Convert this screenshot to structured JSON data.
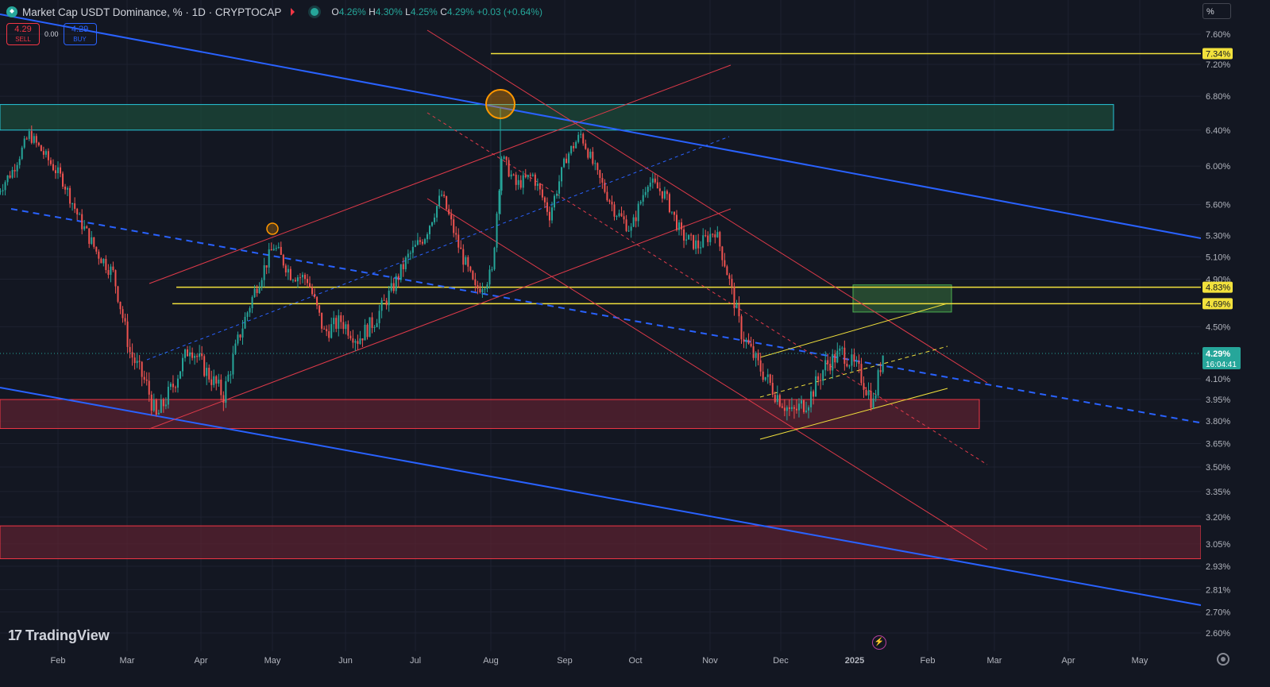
{
  "header": {
    "title": "Market Cap USDT Dominance, % · 1D · CRYPTOCAP",
    "open_label": "O",
    "open": "4.26%",
    "high_label": "H",
    "high": "4.30%",
    "low_label": "L",
    "low": "4.25%",
    "close_label": "C",
    "close": "4.29%",
    "change": "+0.03 (+0.64%)"
  },
  "trade": {
    "sell_price": "4.29",
    "sell_label": "SELL",
    "spread": "0.00",
    "buy_price": "4.29",
    "buy_label": "BUY"
  },
  "scale_mode": "%",
  "branding": {
    "name": "TradingView"
  },
  "colors": {
    "background": "#131722",
    "up": "#26a69a",
    "down": "#ef5350",
    "trendline_blue": "#2962ff",
    "trendline_red": "#e03a4a",
    "level_yellow": "#f2e13c",
    "zone_green": "#1c4a3a",
    "zone_red": "#5a2230"
  },
  "chart_data": {
    "type": "candlestick",
    "title": "Market Cap USDT Dominance, % · 1D · CRYPTOCAP",
    "x_ticks": [
      "Feb",
      "Mar",
      "Apr",
      "May",
      "Jun",
      "Jul",
      "Aug",
      "Sep",
      "Oct",
      "Nov",
      "Dec",
      "2025",
      "Feb",
      "Mar",
      "Apr",
      "May"
    ],
    "y_ticks": [
      "7.60%",
      "7.20%",
      "6.80%",
      "6.40%",
      "6.00%",
      "5.60%",
      "5.30%",
      "5.10%",
      "4.90%",
      "4.50%",
      "4.10%",
      "3.95%",
      "3.80%",
      "3.65%",
      "3.50%",
      "3.35%",
      "3.20%",
      "3.05%",
      "2.93%",
      "2.81%",
      "2.70%",
      "2.60%"
    ],
    "y_scale": "log",
    "last_price": "4.29%",
    "countdown": "16:04:41",
    "price_labels": [
      "7.34%",
      "4.83%",
      "4.69%"
    ],
    "close_path": [
      [
        "2024-01-06",
        5.7
      ],
      [
        "2024-01-13",
        5.95
      ],
      [
        "2024-01-20",
        6.35
      ],
      [
        "2024-01-27",
        6.1
      ],
      [
        "2024-02-03",
        5.85
      ],
      [
        "2024-02-10",
        5.45
      ],
      [
        "2024-02-17",
        5.15
      ],
      [
        "2024-02-24",
        4.95
      ],
      [
        "2024-03-02",
        4.3
      ],
      [
        "2024-03-09",
        4.05
      ],
      [
        "2024-03-13",
        3.82
      ],
      [
        "2024-03-20",
        4.05
      ],
      [
        "2024-03-27",
        4.35
      ],
      [
        "2024-04-03",
        4.15
      ],
      [
        "2024-04-10",
        3.98
      ],
      [
        "2024-04-17",
        4.45
      ],
      [
        "2024-04-24",
        4.85
      ],
      [
        "2024-05-01",
        5.2
      ],
      [
        "2024-05-08",
        4.95
      ],
      [
        "2024-05-15",
        4.9
      ],
      [
        "2024-05-22",
        4.45
      ],
      [
        "2024-05-29",
        4.55
      ],
      [
        "2024-06-05",
        4.4
      ],
      [
        "2024-06-12",
        4.55
      ],
      [
        "2024-06-19",
        4.8
      ],
      [
        "2024-06-26",
        5.1
      ],
      [
        "2024-07-03",
        5.3
      ],
      [
        "2024-07-10",
        5.7
      ],
      [
        "2024-07-17",
        5.2
      ],
      [
        "2024-07-24",
        4.8
      ],
      [
        "2024-07-31",
        4.95
      ],
      [
        "2024-08-04",
        6.1
      ],
      [
        "2024-08-10",
        5.8
      ],
      [
        "2024-08-17",
        5.9
      ],
      [
        "2024-08-24",
        5.5
      ],
      [
        "2024-08-31",
        6.1
      ],
      [
        "2024-09-06",
        6.35
      ],
      [
        "2024-09-13",
        5.9
      ],
      [
        "2024-09-20",
        5.55
      ],
      [
        "2024-09-27",
        5.35
      ],
      [
        "2024-10-04",
        5.85
      ],
      [
        "2024-10-11",
        5.7
      ],
      [
        "2024-10-18",
        5.3
      ],
      [
        "2024-10-25",
        5.2
      ],
      [
        "2024-11-01",
        5.35
      ],
      [
        "2024-11-05",
        5.05
      ],
      [
        "2024-11-12",
        4.45
      ],
      [
        "2024-11-19",
        4.2
      ],
      [
        "2024-11-26",
        4.0
      ],
      [
        "2024-12-03",
        3.85
      ],
      [
        "2024-12-10",
        3.95
      ],
      [
        "2024-12-17",
        4.2
      ],
      [
        "2024-12-24",
        4.3
      ],
      [
        "2024-12-31",
        4.15
      ],
      [
        "2025-01-06",
        3.92
      ],
      [
        "2025-01-10",
        4.29
      ]
    ],
    "zones": [
      {
        "name": "green-resistance-zone",
        "from": 6.4,
        "to": 6.7
      },
      {
        "name": "red-support-zone",
        "from": 3.75,
        "to": 3.95
      },
      {
        "name": "lower-red-zone",
        "from": 2.97,
        "to": 3.15
      },
      {
        "name": "green-target-box",
        "from": 4.62,
        "to": 4.85
      }
    ],
    "levels": [
      7.34,
      4.83,
      4.69
    ]
  }
}
